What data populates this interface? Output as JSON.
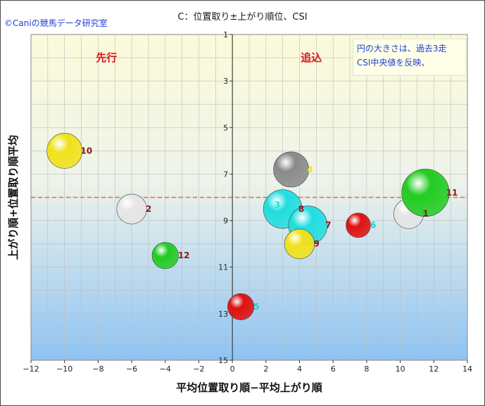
{
  "header": {
    "copyright": "©Caniの競馬データ研究室",
    "title": "C：位置取り±上がり順位、CSI"
  },
  "chart_data": {
    "type": "scatter",
    "title": "C：位置取り±上がり順位、CSI",
    "xlabel": "平均位置取り順−平均上がり順",
    "ylabel": "上がり順+位置取り順平均",
    "xlim": [
      -12,
      14
    ],
    "ylim": [
      1,
      15
    ],
    "y_inverted": true,
    "x_ticks": [
      -12,
      -10,
      -8,
      -6,
      -4,
      -2,
      0,
      2,
      4,
      6,
      8,
      10,
      12,
      14
    ],
    "y_ticks": [
      1,
      3,
      5,
      7,
      9,
      11,
      13,
      15
    ],
    "grid": true,
    "reference_line_y": 8,
    "reference_line_color": "#ff6a13",
    "zone_labels": {
      "left": "先行",
      "right": "追込"
    },
    "annotation": [
      "円の大きさは、過去3走",
      "CSI中央値を反映、"
    ],
    "points": [
      {
        "id": "10",
        "x": -10,
        "y": 6,
        "size": 1.0,
        "color": "#f0e21a",
        "label_color": "#8b1a1a"
      },
      {
        "id": "2",
        "x": -6,
        "y": 8.5,
        "size": 0.85,
        "color": "#e6e6e6",
        "label_color": "#8b1a1a"
      },
      {
        "id": "12",
        "x": -4,
        "y": 10.5,
        "size": 0.75,
        "color": "#22cc22",
        "label_color": "#8b1a1a"
      },
      {
        "id": "5",
        "x": 0.5,
        "y": 12.7,
        "size": 0.75,
        "color": "#e01010",
        "label_color": "#22cccc"
      },
      {
        "id": "4",
        "x": 3.5,
        "y": 6.8,
        "size": 1.0,
        "color": "#8a8a8a",
        "label_color": "#f0e21a"
      },
      {
        "id": "3",
        "x": 3,
        "y": 8.5,
        "size": 1.1,
        "color": "#22dde0",
        "label_color": "#22dde0"
      },
      {
        "id": "8",
        "x": 3,
        "y": 8.5,
        "size": 0.0,
        "color": "#22dde0",
        "label_color": "#8b1a1a"
      },
      {
        "id": "7",
        "x": 4.5,
        "y": 9.2,
        "size": 1.1,
        "color": "#22dde0",
        "label_color": "#8b1a1a"
      },
      {
        "id": "9",
        "x": 4,
        "y": 10,
        "size": 0.85,
        "color": "#f0e21a",
        "label_color": "#8b1a1a"
      },
      {
        "id": "6",
        "x": 7.5,
        "y": 9.2,
        "size": 0.7,
        "color": "#e01010",
        "label_color": "#22cccc"
      },
      {
        "id": "1",
        "x": 10.5,
        "y": 8.7,
        "size": 0.85,
        "color": "#e6e6e6",
        "label_color": "#8b1a1a"
      },
      {
        "id": "11",
        "x": 11.5,
        "y": 7.8,
        "size": 1.35,
        "color": "#22cc22",
        "label_color": "#8b1a1a"
      }
    ]
  }
}
